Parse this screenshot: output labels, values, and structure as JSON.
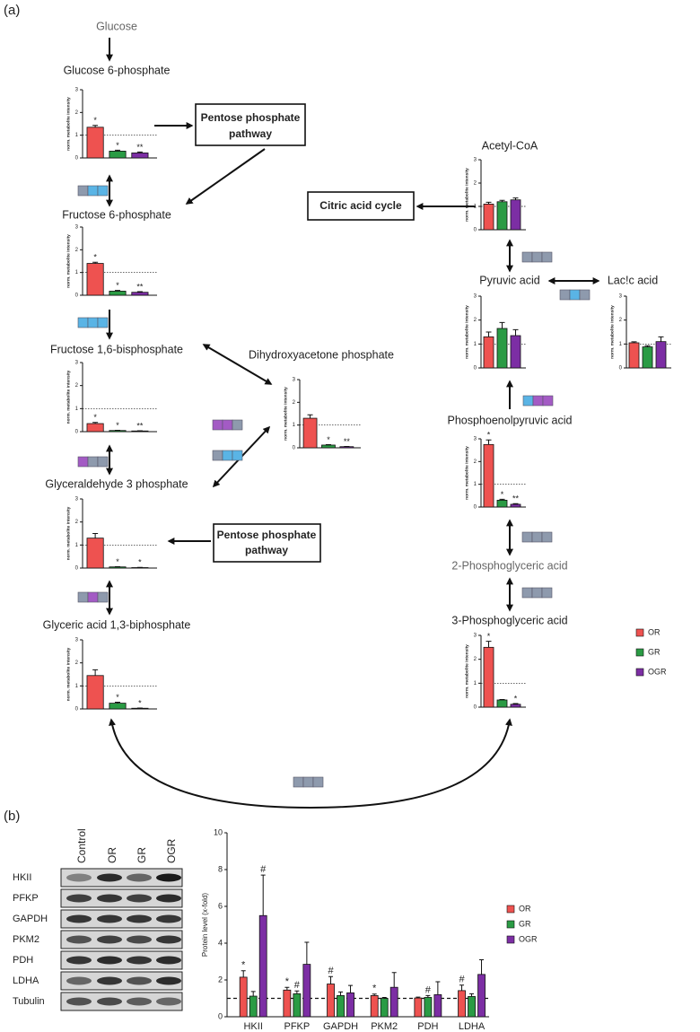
{
  "panels": [
    "(a)",
    "(b)"
  ],
  "nodes": {
    "glucose": "Glucose",
    "pga2": "2-Phosphoglyceric acid"
  },
  "pathways": [
    [
      "Pentose phosphate",
      "pathway"
    ],
    [
      "Citric acid cycle"
    ],
    [
      "Pentose phosphate",
      "pathway"
    ]
  ],
  "legend": [
    {
      "name": "OR",
      "color": "#ee5250"
    },
    {
      "name": "GR",
      "color": "#2a9b44"
    },
    {
      "name": "OGR",
      "color": "#7c2ea4"
    }
  ],
  "blot": {
    "columns": [
      "Control",
      "OR",
      "GR",
      "OGR"
    ],
    "rows": [
      "HKII",
      "PFKP",
      "GAPDH",
      "PKM2",
      "PDH",
      "LDHA",
      "Tubulin"
    ]
  },
  "chart_data": [
    {
      "type": "bar",
      "title": "Glucose 6-phosphate",
      "ylabel": "norm. metabolite intensity",
      "ylim": [
        0,
        3
      ],
      "yticks": [
        0,
        1,
        2,
        3
      ],
      "reference_line": 1,
      "colors": [
        "#ee5250",
        "#2a9b44",
        "#7c2ea4"
      ],
      "values": [
        1.35,
        0.3,
        0.22
      ],
      "errors": [
        0.08,
        0.04,
        0.04
      ],
      "annotations": [
        "*",
        "*",
        "**"
      ]
    },
    {
      "type": "bar",
      "title": "Fructose 6-phosphate",
      "ylabel": "norm. metabolite intensity",
      "ylim": [
        0,
        3
      ],
      "yticks": [
        0,
        1,
        2,
        3
      ],
      "reference_line": 1,
      "colors": [
        "#ee5250",
        "#2a9b44",
        "#7c2ea4"
      ],
      "values": [
        1.4,
        0.18,
        0.13
      ],
      "errors": [
        0.05,
        0.03,
        0.03
      ],
      "annotations": [
        "*",
        "*",
        "**"
      ]
    },
    {
      "type": "bar",
      "title": "Fructose 1,6-bisphosphate",
      "ylabel": "norm. metabolite intensity",
      "ylim": [
        0,
        3
      ],
      "yticks": [
        0,
        1,
        2,
        3
      ],
      "reference_line": 1,
      "colors": [
        "#ee5250",
        "#2a9b44",
        "#7c2ea4"
      ],
      "values": [
        0.35,
        0.05,
        0.03
      ],
      "errors": [
        0.05,
        0.01,
        0.01
      ],
      "annotations": [
        "*",
        "*",
        "**"
      ]
    },
    {
      "type": "bar",
      "title": "Glyceraldehyde 3 phosphate",
      "ylabel": "norm. metabolite intensity",
      "ylim": [
        0,
        3
      ],
      "yticks": [
        0,
        1,
        2,
        3
      ],
      "reference_line": 1,
      "colors": [
        "#ee5250",
        "#2a9b44",
        "#7c2ea4"
      ],
      "values": [
        1.3,
        0.05,
        0.02
      ],
      "errors": [
        0.2,
        0.01,
        0.01
      ],
      "annotations": [
        null,
        "*",
        "*"
      ]
    },
    {
      "type": "bar",
      "title": "Glyceric acid 1,3-biphosphate",
      "ylabel": "norm. metabolite intensity",
      "ylim": [
        0,
        3
      ],
      "yticks": [
        0,
        1,
        2,
        3
      ],
      "reference_line": 1,
      "colors": [
        "#ee5250",
        "#2a9b44",
        "#7c2ea4"
      ],
      "values": [
        1.45,
        0.25,
        0.03
      ],
      "errors": [
        0.25,
        0.04,
        0.01
      ],
      "annotations": [
        null,
        "*",
        "*"
      ]
    },
    {
      "type": "bar",
      "title": "Dihydroxyacetone phosphate",
      "ylabel": "norm. metabolite intensity",
      "ylim": [
        0,
        3
      ],
      "yticks": [
        0,
        1,
        2,
        3
      ],
      "reference_line": 1,
      "colors": [
        "#ee5250",
        "#2a9b44",
        "#7c2ea4"
      ],
      "values": [
        1.3,
        0.12,
        0.05
      ],
      "errors": [
        0.15,
        0.02,
        0.01
      ],
      "annotations": [
        null,
        "*",
        "**"
      ]
    },
    {
      "type": "bar",
      "title": "Acetyl-CoA",
      "ylabel": "norm. metabolite intensity",
      "ylim": [
        0,
        3
      ],
      "yticks": [
        0,
        1,
        2,
        3
      ],
      "reference_line": 1,
      "colors": [
        "#ee5250",
        "#2a9b44",
        "#7c2ea4"
      ],
      "values": [
        1.1,
        1.2,
        1.28
      ],
      "errors": [
        0.08,
        0.06,
        0.08
      ],
      "annotations": [
        null,
        null,
        null
      ]
    },
    {
      "type": "bar",
      "title": "Pyruvic acid",
      "ylabel": "norm. metabolite intensity",
      "ylim": [
        0,
        3
      ],
      "yticks": [
        0,
        1,
        2,
        3
      ],
      "reference_line": 1,
      "colors": [
        "#ee5250",
        "#2a9b44",
        "#7c2ea4"
      ],
      "values": [
        1.3,
        1.65,
        1.35
      ],
      "errors": [
        0.2,
        0.25,
        0.25
      ],
      "annotations": [
        null,
        null,
        null
      ]
    },
    {
      "type": "bar",
      "title": "Lac!c acid",
      "ylabel": "norm. metabolite intensity",
      "ylim": [
        0,
        3
      ],
      "yticks": [
        0,
        1,
        2,
        3
      ],
      "reference_line": 1,
      "colors": [
        "#ee5250",
        "#2a9b44",
        "#7c2ea4"
      ],
      "values": [
        1.05,
        0.88,
        1.1
      ],
      "errors": [
        0.04,
        0.05,
        0.2
      ],
      "annotations": [
        null,
        null,
        null
      ]
    },
    {
      "type": "bar",
      "title": "Phosphoenolpyruvic acid",
      "ylabel": "norm. metabolite intensity",
      "ylim": [
        0,
        3
      ],
      "yticks": [
        0,
        1,
        2,
        3
      ],
      "reference_line": 1,
      "colors": [
        "#ee5250",
        "#2a9b44",
        "#7c2ea4"
      ],
      "values": [
        2.75,
        0.3,
        0.12
      ],
      "errors": [
        0.2,
        0.04,
        0.03
      ],
      "annotations": [
        "*",
        "*",
        "**"
      ]
    },
    {
      "type": "bar",
      "title": "3-Phosphoglyceric acid",
      "ylabel": "norm. metabolite intensity",
      "ylim": [
        0,
        3
      ],
      "yticks": [
        0,
        1,
        2,
        3
      ],
      "reference_line": 1,
      "colors": [
        "#ee5250",
        "#2a9b44",
        "#7c2ea4"
      ],
      "values": [
        2.5,
        0.3,
        0.12
      ],
      "errors": [
        0.25,
        0.02,
        0.03
      ],
      "annotations": [
        "*",
        null,
        "*"
      ]
    },
    {
      "type": "bar",
      "ylabel": "Protein level (x-fold)",
      "ylim": [
        0,
        10
      ],
      "yticks": [
        0,
        2,
        4,
        6,
        8,
        10
      ],
      "reference_line": 1,
      "categories": [
        "HKII",
        "PFKP",
        "GAPDH",
        "PKM2",
        "PDH",
        "LDHA"
      ],
      "series": [
        {
          "name": "OR",
          "color": "#ee5250",
          "values": [
            2.15,
            1.45,
            1.78,
            1.15,
            1.02,
            1.42
          ],
          "errors": [
            0.35,
            0.15,
            0.4,
            0.08,
            0.05,
            0.3
          ],
          "annotations": [
            "*",
            "*",
            "#",
            "*",
            null,
            "#"
          ]
        },
        {
          "name": "GR",
          "color": "#2a9b44",
          "values": [
            1.12,
            1.25,
            1.15,
            1.0,
            1.05,
            1.1
          ],
          "errors": [
            0.25,
            0.15,
            0.2,
            0.05,
            0.1,
            0.15
          ],
          "annotations": [
            null,
            "#",
            null,
            null,
            "#",
            null
          ]
        },
        {
          "name": "OGR",
          "color": "#7c2ea4",
          "values": [
            5.5,
            2.85,
            1.3,
            1.6,
            1.2,
            2.3
          ],
          "errors": [
            2.2,
            1.2,
            0.4,
            0.8,
            0.7,
            0.8
          ],
          "annotations": [
            "#",
            null,
            null,
            null,
            null,
            null
          ]
        }
      ]
    }
  ]
}
